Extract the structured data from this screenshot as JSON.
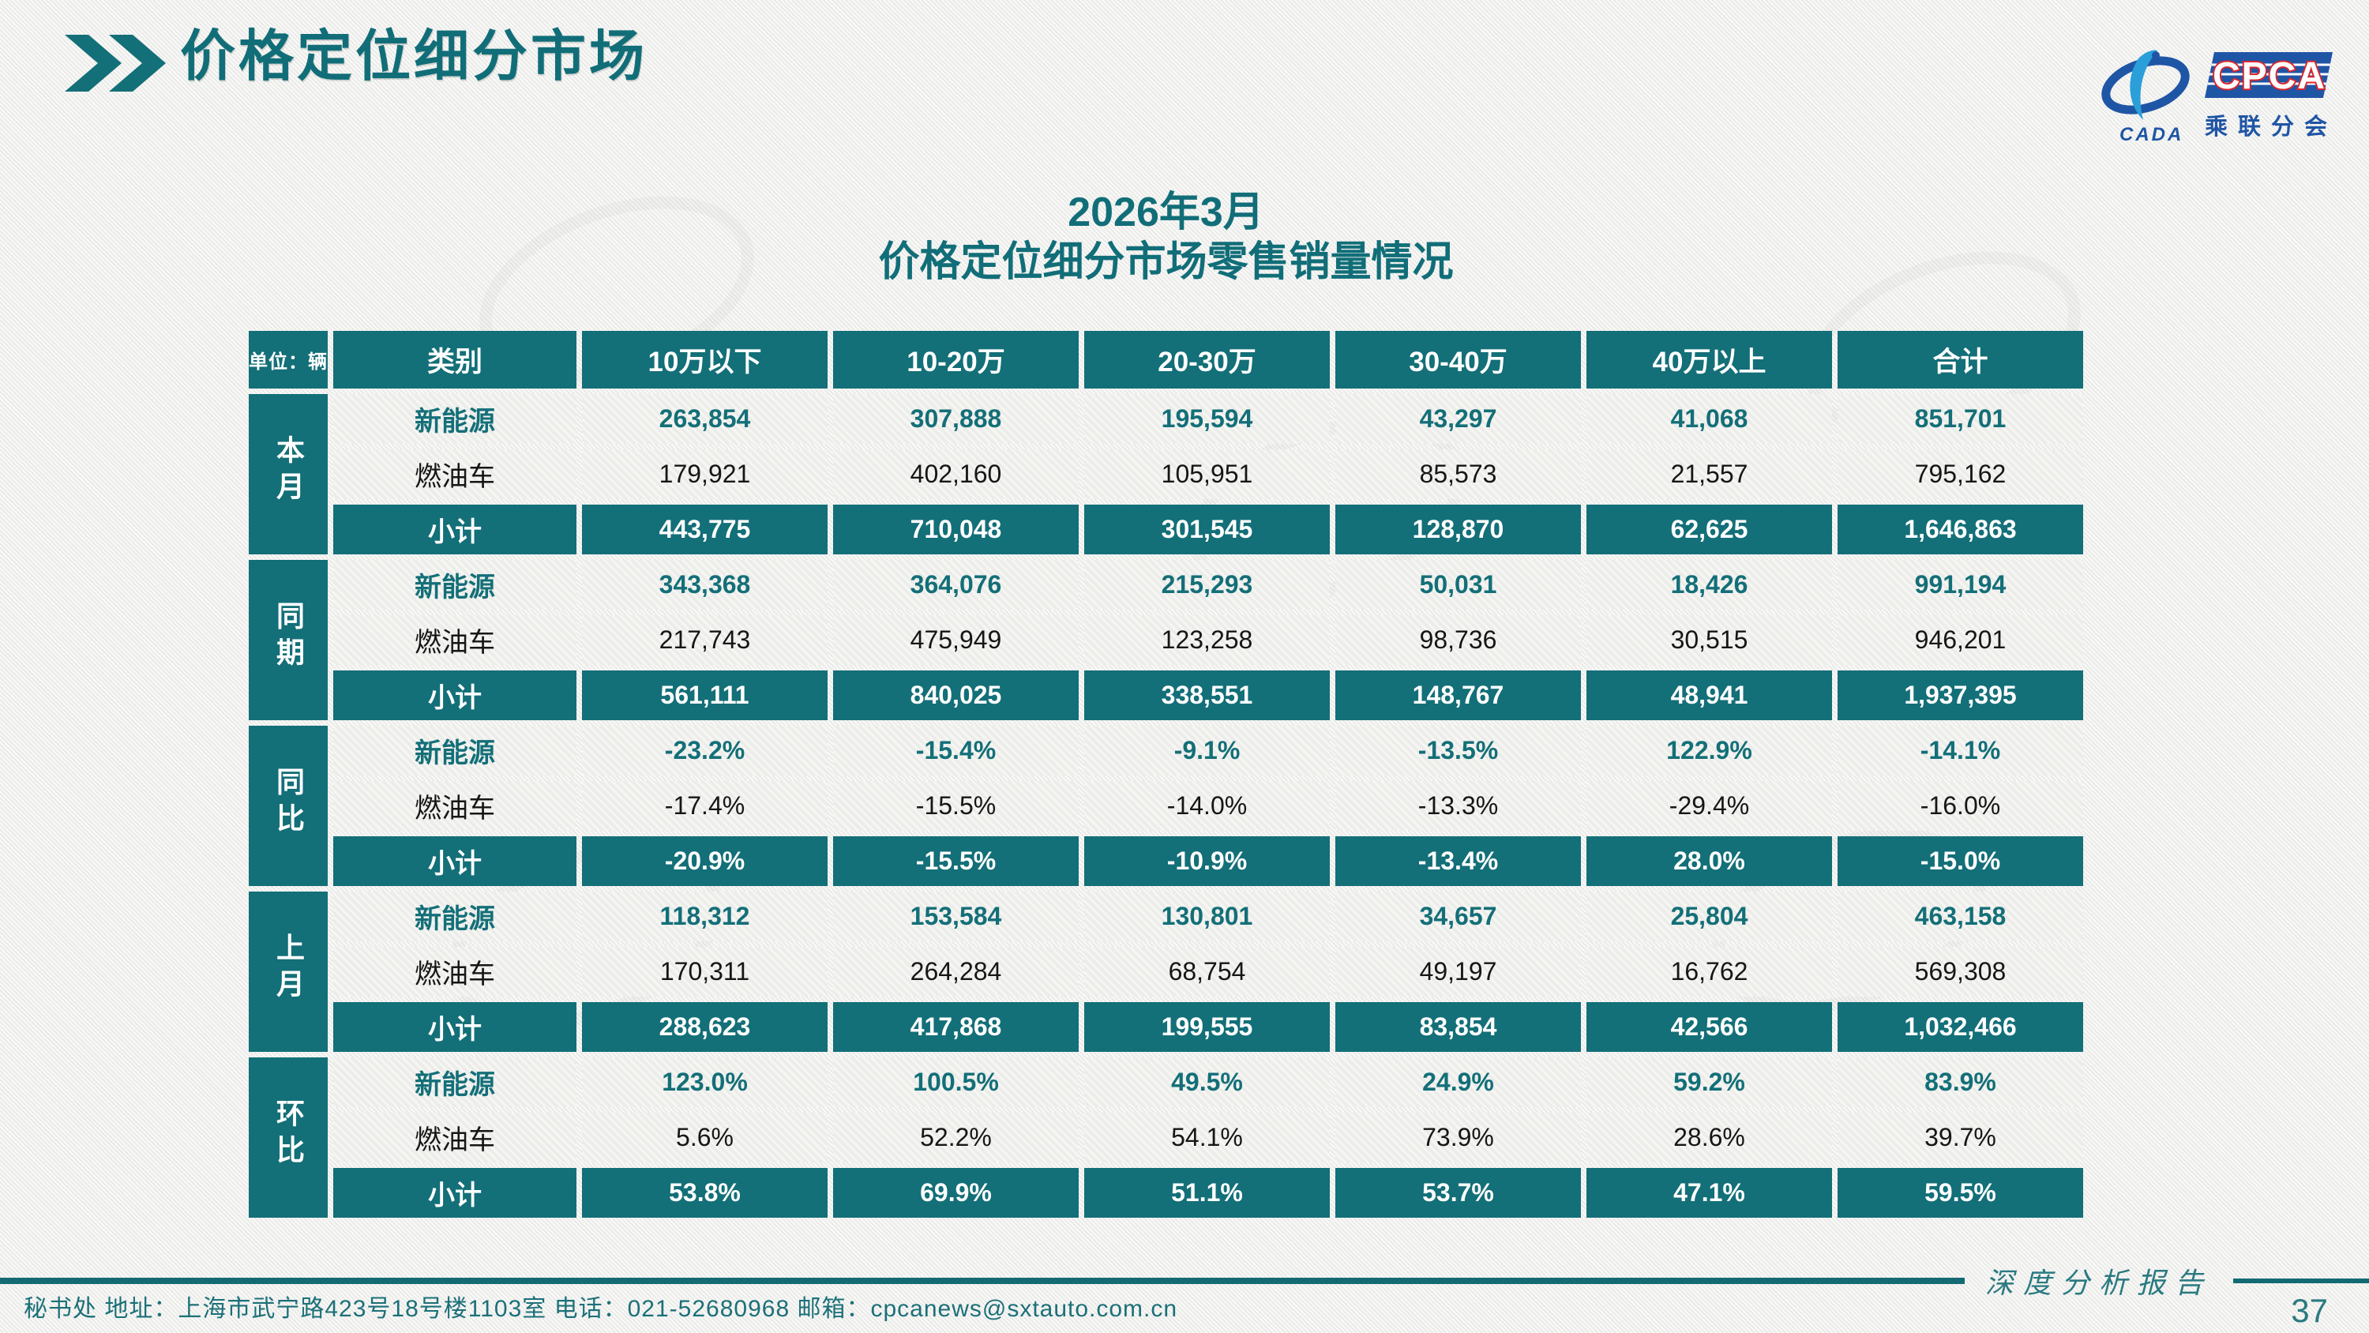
{
  "header": {
    "title": "价格定位细分市场"
  },
  "logo": {
    "cada_text": "CADA",
    "cpca_text": "CPCA",
    "branch_text": "乘联分会"
  },
  "subtitle": {
    "line1": "2026年3月",
    "line2": "价格定位细分市场零售销量情况"
  },
  "table": {
    "unit_label": "单位：辆",
    "columns": [
      "类别",
      "10万以下",
      "10-20万",
      "20-30万",
      "30-40万",
      "40万以上",
      "合计"
    ],
    "groups": [
      {
        "label": "本月",
        "rows": [
          {
            "category": "新能源",
            "style": "nev",
            "values": [
              "263,854",
              "307,888",
              "195,594",
              "43,297",
              "41,068",
              "851,701"
            ]
          },
          {
            "category": "燃油车",
            "style": "ice",
            "values": [
              "179,921",
              "402,160",
              "105,951",
              "85,573",
              "21,557",
              "795,162"
            ]
          },
          {
            "category": "小计",
            "style": "subtotal",
            "values": [
              "443,775",
              "710,048",
              "301,545",
              "128,870",
              "62,625",
              "1,646,863"
            ]
          }
        ]
      },
      {
        "label": "同期",
        "rows": [
          {
            "category": "新能源",
            "style": "nev",
            "values": [
              "343,368",
              "364,076",
              "215,293",
              "50,031",
              "18,426",
              "991,194"
            ]
          },
          {
            "category": "燃油车",
            "style": "ice",
            "values": [
              "217,743",
              "475,949",
              "123,258",
              "98,736",
              "30,515",
              "946,201"
            ]
          },
          {
            "category": "小计",
            "style": "subtotal",
            "values": [
              "561,111",
              "840,025",
              "338,551",
              "148,767",
              "48,941",
              "1,937,395"
            ]
          }
        ]
      },
      {
        "label": "同比",
        "rows": [
          {
            "category": "新能源",
            "style": "nev",
            "values": [
              "-23.2%",
              "-15.4%",
              "-9.1%",
              "-13.5%",
              "122.9%",
              "-14.1%"
            ]
          },
          {
            "category": "燃油车",
            "style": "ice",
            "values": [
              "-17.4%",
              "-15.5%",
              "-14.0%",
              "-13.3%",
              "-29.4%",
              "-16.0%"
            ]
          },
          {
            "category": "小计",
            "style": "subtotal",
            "values": [
              "-20.9%",
              "-15.5%",
              "-10.9%",
              "-13.4%",
              "28.0%",
              "-15.0%"
            ]
          }
        ]
      },
      {
        "label": "上月",
        "rows": [
          {
            "category": "新能源",
            "style": "nev",
            "values": [
              "118,312",
              "153,584",
              "130,801",
              "34,657",
              "25,804",
              "463,158"
            ]
          },
          {
            "category": "燃油车",
            "style": "ice",
            "values": [
              "170,311",
              "264,284",
              "68,754",
              "49,197",
              "16,762",
              "569,308"
            ]
          },
          {
            "category": "小计",
            "style": "subtotal",
            "values": [
              "288,623",
              "417,868",
              "199,555",
              "83,854",
              "42,566",
              "1,032,466"
            ]
          }
        ]
      },
      {
        "label": "环比",
        "rows": [
          {
            "category": "新能源",
            "style": "nev",
            "values": [
              "123.0%",
              "100.5%",
              "49.5%",
              "24.9%",
              "59.2%",
              "83.9%"
            ]
          },
          {
            "category": "燃油车",
            "style": "ice",
            "values": [
              "5.6%",
              "52.2%",
              "54.1%",
              "73.9%",
              "28.6%",
              "39.7%"
            ]
          },
          {
            "category": "小计",
            "style": "subtotal",
            "values": [
              "53.8%",
              "69.9%",
              "51.1%",
              "53.7%",
              "47.1%",
              "59.5%"
            ]
          }
        ]
      }
    ]
  },
  "footer": {
    "info": "秘书处  地址：上海市武宁路423号18号楼1103室  电话：021-52680968   邮箱：cpcanews@sxtauto.com.cn",
    "report_label": "深度分析报告",
    "page_number": "37"
  },
  "colors": {
    "accent_teal": "#136F78",
    "logo_blue": "#1F55A5",
    "logo_light_blue": "#2B9FD9",
    "logo_red": "#D9272E"
  }
}
